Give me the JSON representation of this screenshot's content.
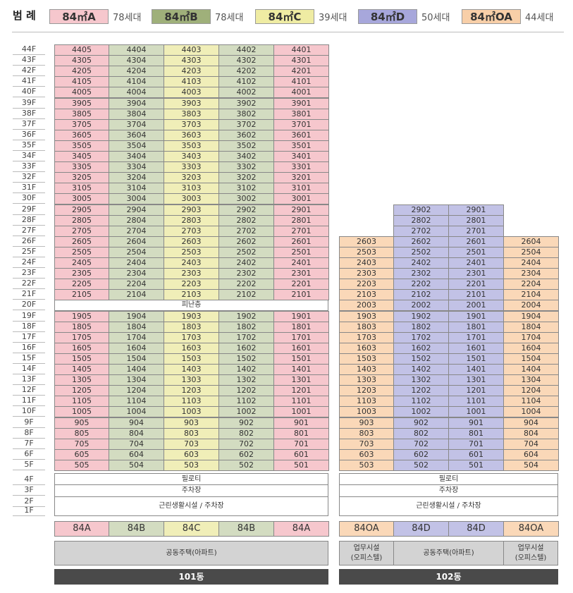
{
  "legend": {
    "title": "범 례",
    "items": [
      {
        "label": "84㎡A",
        "count": "78세대",
        "color": "#f6c7cd"
      },
      {
        "label": "84㎡B",
        "count": "78세대",
        "color": "#9fb07a"
      },
      {
        "label": "84㎡C",
        "count": "39세대",
        "color": "#efeca3"
      },
      {
        "label": "84㎡D",
        "count": "50세대",
        "color": "#a7a7db"
      },
      {
        "label": "84㎡OA",
        "count": "44세대",
        "color": "#f8cfa8"
      }
    ]
  },
  "colors": {
    "A": "#f6c7cd",
    "B": "#d3dcc1",
    "C": "#f0eeb8",
    "D": "#c2c2e6",
    "OA": "#fad8b8"
  },
  "floors": [
    "44F",
    "43F",
    "42F",
    "41F",
    "40F",
    "39F",
    "38F",
    "37F",
    "36F",
    "35F",
    "34F",
    "33F",
    "32F",
    "31F",
    "30F",
    "29F",
    "28F",
    "27F",
    "26F",
    "25F",
    "24F",
    "23F",
    "22F",
    "21F",
    "20F",
    "19F",
    "18F",
    "17F",
    "16F",
    "15F",
    "14F",
    "13F",
    "12F",
    "11F",
    "10F",
    "9F",
    "8F",
    "7F",
    "6F",
    "5F",
    "4F",
    "3F",
    "2F",
    "1F"
  ],
  "building101": {
    "units_top": [
      "4405",
      "4404",
      "4403",
      "4402",
      "4401",
      "4305",
      "4304",
      "4303",
      "4302",
      "4301",
      "4205",
      "4204",
      "4203",
      "4202",
      "4201",
      "4105",
      "4104",
      "4103",
      "4102",
      "4101",
      "4005",
      "4004",
      "4003",
      "4002",
      "4001",
      "3905",
      "3904",
      "3903",
      "3902",
      "3901",
      "3805",
      "3804",
      "3803",
      "3802",
      "3801",
      "3705",
      "3704",
      "3703",
      "3702",
      "3701",
      "3605",
      "3604",
      "3603",
      "3602",
      "3601",
      "3505",
      "3504",
      "3503",
      "3502",
      "3501",
      "3405",
      "3404",
      "3403",
      "3402",
      "3401",
      "3305",
      "3304",
      "3303",
      "3302",
      "3301",
      "3205",
      "3204",
      "3203",
      "3202",
      "3201",
      "3105",
      "3104",
      "3103",
      "3102",
      "3101",
      "3005",
      "3004",
      "3003",
      "3002",
      "3001",
      "2905",
      "2904",
      "2903",
      "2902",
      "2901",
      "2805",
      "2804",
      "2803",
      "2802",
      "2801",
      "2705",
      "2704",
      "2703",
      "2702",
      "2701",
      "2605",
      "2604",
      "2603",
      "2602",
      "2601",
      "2505",
      "2504",
      "2503",
      "2502",
      "2501",
      "2405",
      "2404",
      "2403",
      "2402",
      "2401",
      "2305",
      "2304",
      "2303",
      "2302",
      "2301",
      "2205",
      "2204",
      "2203",
      "2202",
      "2201",
      "2105",
      "2104",
      "2103",
      "2102",
      "2101"
    ],
    "refuge_floor": "피난층",
    "units_bottom": [
      "1905",
      "1904",
      "1903",
      "1902",
      "1901",
      "1805",
      "1804",
      "1803",
      "1802",
      "1801",
      "1705",
      "1704",
      "1703",
      "1702",
      "1701",
      "1605",
      "1604",
      "1603",
      "1602",
      "1601",
      "1505",
      "1504",
      "1503",
      "1502",
      "1501",
      "1405",
      "1404",
      "1403",
      "1402",
      "1401",
      "1305",
      "1304",
      "1303",
      "1302",
      "1301",
      "1205",
      "1204",
      "1203",
      "1202",
      "1201",
      "1105",
      "1104",
      "1103",
      "1102",
      "1101",
      "1005",
      "1004",
      "1003",
      "1002",
      "1001",
      "905",
      "904",
      "903",
      "902",
      "901",
      "805",
      "804",
      "803",
      "802",
      "801",
      "705",
      "704",
      "703",
      "702",
      "701",
      "605",
      "604",
      "603",
      "602",
      "601",
      "505",
      "504",
      "503",
      "502",
      "501"
    ],
    "pilotis": "필로티",
    "parking": "주차장",
    "retail": "근린생활시설 / 주차장",
    "types": [
      "84A",
      "84B",
      "84C",
      "84B",
      "84A"
    ],
    "use": "공동주택(아파트)",
    "name": "101동"
  },
  "building102": {
    "units_tower": [
      "2902",
      "2901",
      "2802",
      "2801",
      "2702",
      "2701"
    ],
    "units": [
      "2603",
      "2602",
      "2601",
      "2604",
      "2503",
      "2502",
      "2501",
      "2504",
      "2403",
      "2402",
      "2401",
      "2404",
      "2303",
      "2302",
      "2301",
      "2304",
      "2203",
      "2202",
      "2201",
      "2204",
      "2103",
      "2102",
      "2101",
      "2104",
      "2003",
      "2002",
      "2001",
      "2004",
      "1903",
      "1902",
      "1901",
      "1904",
      "1803",
      "1802",
      "1801",
      "1804",
      "1703",
      "1702",
      "1701",
      "1704",
      "1603",
      "1602",
      "1601",
      "1604",
      "1503",
      "1502",
      "1501",
      "1504",
      "1403",
      "1402",
      "1401",
      "1404",
      "1303",
      "1302",
      "1301",
      "1304",
      "1203",
      "1202",
      "1201",
      "1204",
      "1103",
      "1102",
      "1101",
      "1104",
      "1003",
      "1002",
      "1001",
      "1004",
      "903",
      "902",
      "901",
      "904",
      "803",
      "802",
      "801",
      "804",
      "703",
      "702",
      "701",
      "704",
      "603",
      "602",
      "601",
      "604",
      "503",
      "502",
      "501",
      "504"
    ],
    "pilotis": "필로티",
    "parking": "주차장",
    "retail": "근린생활시설 / 주차장",
    "types": [
      "84OA",
      "84D",
      "84D",
      "84OA"
    ],
    "use_office_left": [
      "업무시설",
      "(오피스텔)"
    ],
    "use_apartment": "공동주택(아파트)",
    "use_office_right": [
      "업무시설",
      "(오피스텔)"
    ],
    "name": "102동"
  }
}
